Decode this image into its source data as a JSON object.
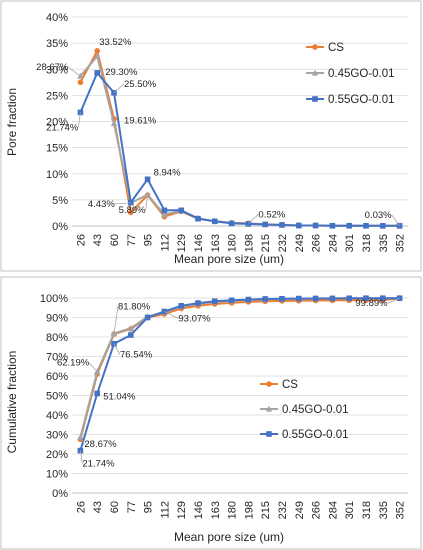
{
  "chart_data": [
    {
      "type": "line",
      "title": "",
      "xlabel": "Mean pore size (um)",
      "ylabel": "Pore fraction",
      "categories": [
        "26",
        "43",
        "60",
        "77",
        "95",
        "112",
        "129",
        "146",
        "163",
        "180",
        "198",
        "215",
        "232",
        "249",
        "266",
        "284",
        "301",
        "318",
        "335",
        "352"
      ],
      "ylim": [
        0,
        40
      ],
      "yticks": [
        "0%",
        "5%",
        "10%",
        "15%",
        "20%",
        "25%",
        "30%",
        "35%",
        "40%"
      ],
      "grid": "horizontal",
      "legend": "right",
      "series": [
        {
          "name": "CS",
          "color": "#ed7d31",
          "marker": "circle",
          "values": [
            27.5,
            33.52,
            20.5,
            2.6,
            5.89,
            1.8,
            2.8,
            1.4,
            0.9,
            0.6,
            0.52,
            0.3,
            0.2,
            0.1,
            0.1,
            0.05,
            0.05,
            0.04,
            0.03,
            0.03
          ]
        },
        {
          "name": "0.45GO-0.01",
          "color": "#a5a5a5",
          "marker": "triangle",
          "values": [
            28.67,
            32.5,
            19.61,
            4.43,
            6.0,
            2.2,
            2.9,
            1.5,
            0.9,
            0.6,
            0.45,
            0.3,
            0.2,
            0.1,
            0.1,
            0.05,
            0.05,
            0.04,
            0.03,
            0.03
          ]
        },
        {
          "name": "0.55GO-0.01",
          "color": "#4472c4",
          "marker": "square",
          "values": [
            21.74,
            29.3,
            25.5,
            4.5,
            8.94,
            3.0,
            3.0,
            1.4,
            0.9,
            0.5,
            0.4,
            0.3,
            0.2,
            0.1,
            0.1,
            0.05,
            0.05,
            0.04,
            0.03,
            0.03
          ]
        }
      ],
      "annotations": [
        {
          "text": "28.67%",
          "series": 1,
          "index": 0
        },
        {
          "text": "33.52%",
          "series": 0,
          "index": 1
        },
        {
          "text": "29.30%",
          "series": 2,
          "index": 1
        },
        {
          "text": "25.50%",
          "series": 2,
          "index": 2
        },
        {
          "text": "21.74%",
          "series": 2,
          "index": 0
        },
        {
          "text": "19.61%",
          "series": 1,
          "index": 2
        },
        {
          "text": "8.94%",
          "series": 2,
          "index": 4
        },
        {
          "text": "4.43%",
          "series": 1,
          "index": 3
        },
        {
          "text": "5.89%",
          "series": 0,
          "index": 4
        },
        {
          "text": "0.52%",
          "series": 0,
          "index": 10
        },
        {
          "text": "0.03%",
          "series": 0,
          "index": 19
        }
      ]
    },
    {
      "type": "line",
      "title": "",
      "xlabel": "Mean pore size  (um)",
      "ylabel": "Cumulative fraction",
      "categories": [
        "26",
        "43",
        "60",
        "77",
        "95",
        "112",
        "129",
        "146",
        "163",
        "180",
        "198",
        "215",
        "232",
        "249",
        "266",
        "284",
        "301",
        "318",
        "335",
        "352"
      ],
      "ylim": [
        0,
        100
      ],
      "yticks": [
        "0%",
        "10%",
        "20%",
        "30%",
        "40%",
        "50%",
        "60%",
        "70%",
        "80%",
        "90%",
        "100%"
      ],
      "grid": "horizontal",
      "legend": "right",
      "series": [
        {
          "name": "CS",
          "color": "#ed7d31",
          "marker": "circle",
          "values": [
            27.5,
            61.0,
            81.5,
            84.1,
            90.0,
            91.8,
            94.6,
            96.0,
            96.9,
            97.5,
            98.0,
            98.3,
            98.5,
            98.6,
            98.7,
            98.75,
            98.8,
            98.84,
            98.87,
            99.89
          ]
        },
        {
          "name": "0.45GO-0.01",
          "color": "#a5a5a5",
          "marker": "triangle",
          "values": [
            28.67,
            62.19,
            81.8,
            84.5,
            90.5,
            92.7,
            95.6,
            97.1,
            98.0,
            98.6,
            99.0,
            99.3,
            99.5,
            99.6,
            99.7,
            99.75,
            99.8,
            99.84,
            99.87,
            99.89
          ]
        },
        {
          "name": "0.55GO-0.01",
          "color": "#4472c4",
          "marker": "square",
          "values": [
            21.74,
            51.04,
            76.54,
            81.0,
            90.0,
            93.07,
            96.0,
            97.4,
            98.3,
            98.8,
            99.2,
            99.5,
            99.6,
            99.7,
            99.75,
            99.8,
            99.84,
            99.86,
            99.88,
            99.89
          ]
        }
      ],
      "annotations": [
        {
          "text": "81.80%",
          "series": 1,
          "index": 2
        },
        {
          "text": "62.19%",
          "series": 1,
          "index": 1
        },
        {
          "text": "28.67%",
          "series": 1,
          "index": 0
        },
        {
          "text": "51.04%",
          "series": 2,
          "index": 1
        },
        {
          "text": "76.54%",
          "series": 2,
          "index": 2
        },
        {
          "text": "93.07%",
          "series": 2,
          "index": 5
        },
        {
          "text": "21.74%",
          "series": 2,
          "index": 0
        },
        {
          "text": "99.89%",
          "series": 2,
          "index": 19
        }
      ]
    }
  ]
}
